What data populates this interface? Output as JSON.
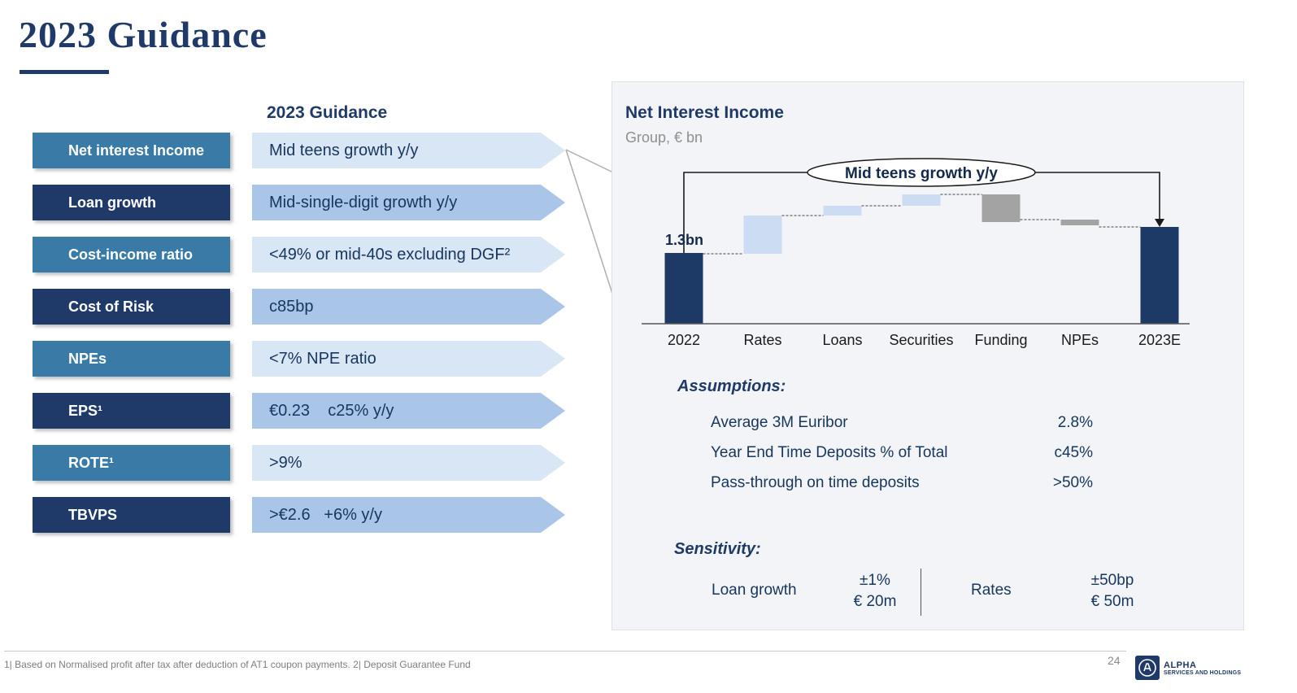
{
  "slide": {
    "title": "2023 Guidance",
    "page_number": "24",
    "footnote": "1| Based on Normalised profit after tax after deduction of AT1 coupon payments. 2| Deposit Guarantee Fund",
    "logo": {
      "line1": "ALPHA",
      "line2": "SERVICES AND HOLDINGS",
      "icon": "alpha-emblem-coin"
    }
  },
  "guidance_table": {
    "header": "2023 Guidance",
    "rows": [
      {
        "label": "Net interest Income",
        "value": "Mid teens growth y/y"
      },
      {
        "label": "Loan growth",
        "value": "Mid-single-digit growth y/y"
      },
      {
        "label": "Cost-income ratio",
        "value": "<49% or mid-40s excluding DGF²"
      },
      {
        "label": "Cost of Risk",
        "value": "c85bp"
      },
      {
        "label": "NPEs",
        "value": "<7% NPE ratio"
      },
      {
        "label": "EPS¹",
        "value": "€0.23    c25% y/y"
      },
      {
        "label": "ROTE¹",
        "value": ">9%"
      },
      {
        "label": "TBVPS",
        "value": ">€2.6   +6% y/y"
      }
    ]
  },
  "panel": {
    "title": "Net Interest Income",
    "subtitle": "Group, € bn",
    "assumptions": {
      "heading": "Assumptions:",
      "rows": [
        {
          "label": "Average 3M Euribor",
          "value": "2.8%"
        },
        {
          "label": "Year End Time Deposits % of Total",
          "value": "c45%"
        },
        {
          "label": "Pass-through on time deposits",
          "value": ">50%"
        }
      ]
    },
    "sensitivity": {
      "heading": "Sensitivity:",
      "items": [
        {
          "label": "Loan growth",
          "value_top": "±1%",
          "value_bottom": "€ 20m"
        },
        {
          "label": "Rates",
          "value_top": "±50bp",
          "value_bottom": "€ 50m"
        }
      ]
    }
  },
  "chart_data": {
    "type": "waterfall",
    "title": "Net Interest Income",
    "subtitle": "Group, € bn",
    "annotation": "Mid teens growth y/y",
    "categories": [
      "2022",
      "Rates",
      "Loans",
      "Securities",
      "Funding",
      "NPEs",
      "2023E"
    ],
    "start_label": "1.3bn",
    "start_value_bn": 1.3,
    "note": "schematic waterfall; only 2022 bar labeled (1.3bn); from/to are relative heights above axis as drawn",
    "bars": [
      {
        "category": "2022",
        "kind": "total",
        "from": 0,
        "to": 87,
        "color_key": "navy"
      },
      {
        "category": "Rates",
        "kind": "increase",
        "from": 86,
        "to": 133,
        "color_key": "lightblue"
      },
      {
        "category": "Loans",
        "kind": "increase",
        "from": 133,
        "to": 145,
        "color_key": "lightblue"
      },
      {
        "category": "Securities",
        "kind": "increase",
        "from": 145,
        "to": 159,
        "color_key": "lightblue"
      },
      {
        "category": "Funding",
        "kind": "decrease",
        "from": 125,
        "to": 159,
        "color_key": "gray"
      },
      {
        "category": "NPEs",
        "kind": "decrease",
        "from": 121,
        "to": 128,
        "color_key": "gray"
      },
      {
        "category": "2023E",
        "kind": "total",
        "from": 0,
        "to": 119,
        "color_key": "navy"
      }
    ],
    "colors": {
      "navy": "#1d3a66",
      "lightblue": "#ccdcf2",
      "gray": "#a3a3a3"
    }
  },
  "colors": {
    "navy": "#1f3a68",
    "steel": "#3a7aa6",
    "arrow_light": "#d9e6f5",
    "arrow_medium": "#a9c6e9",
    "navy_text": "#17365d",
    "panel_bg": "#f2f4f7"
  }
}
